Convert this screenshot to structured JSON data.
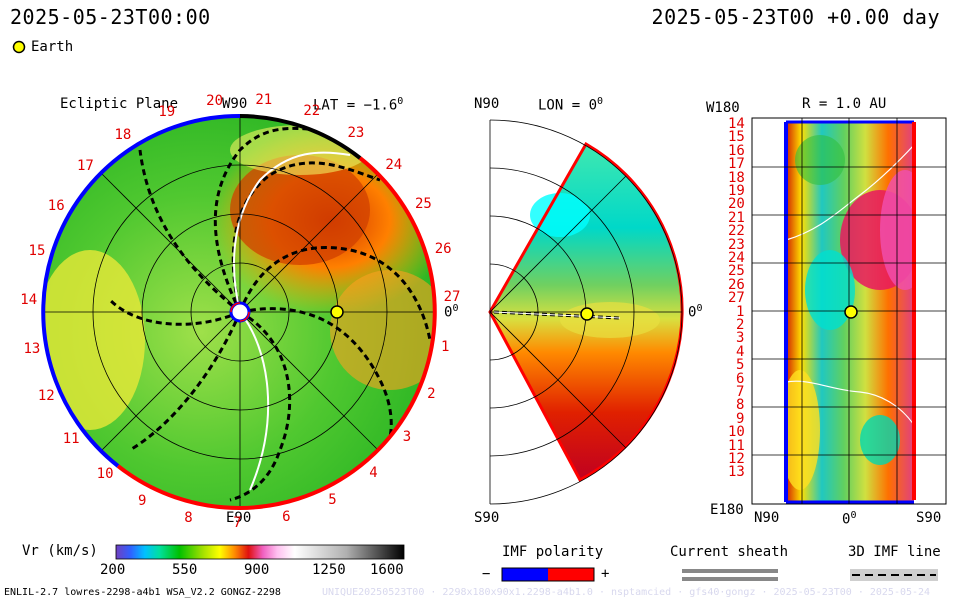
{
  "header": {
    "left_time": "2025-05-23T00:00",
    "right_time": "2025-05-23T00 +0.00 day",
    "legend_earth": "Earth"
  },
  "panels": {
    "ecliptic": {
      "title": "Ecliptic Plane",
      "top_label": "W90",
      "lat_label": "LAT = −1.6",
      "bottom_label": "E90",
      "right_label": "0",
      "sector_labels": [
        "20",
        "21",
        "22",
        "23",
        "24",
        "25",
        "26",
        "27",
        "1",
        "2",
        "3",
        "4",
        "5",
        "6",
        "7",
        "8",
        "9",
        "10",
        "11",
        "12",
        "13",
        "14",
        "15",
        "16",
        "17",
        "18",
        "19"
      ]
    },
    "meridional": {
      "top_left": "N90",
      "lon_label": "LON = 0",
      "right_label": "0",
      "bottom_left": "S90"
    },
    "radial": {
      "top_left": "W180",
      "r_label": "R = 1.0 AU",
      "y_labels": [
        "14",
        "15",
        "16",
        "17",
        "18",
        "19",
        "20",
        "21",
        "22",
        "23",
        "24",
        "25",
        "26",
        "27",
        "1",
        "2",
        "3",
        "4",
        "5",
        "6",
        "7",
        "8",
        "9",
        "10",
        "11",
        "12",
        "13"
      ],
      "bottom_left": "E180",
      "x_labels": [
        "N90",
        "0",
        "S90"
      ]
    }
  },
  "colorbar": {
    "label": "Vr (km/s)",
    "ticks": [
      "200",
      "550",
      "900",
      "1250",
      "1600"
    ]
  },
  "legends": {
    "imf_title": "IMF polarity",
    "imf_minus": "−",
    "imf_plus": "+",
    "sheath_title": "Current sheath",
    "imf_line_title": "3D IMF line"
  },
  "footer": {
    "left_text": "ENLIL-2.7 lowres-2298-a4b1 WSA_V2.2 GONGZ-2298",
    "right_text": "UNIQUE20250523T00 · 2298x180x90x1.2298-a4b1.0 · nsptamcied · gfs40·gongz · 2025-05-23T00 · 2025-05-24"
  },
  "colors": {
    "accent_red": "#ff0000",
    "polarity_minus": "#0000ff",
    "polarity_plus": "#ff0000",
    "earth_fill": "#ffff00"
  }
}
